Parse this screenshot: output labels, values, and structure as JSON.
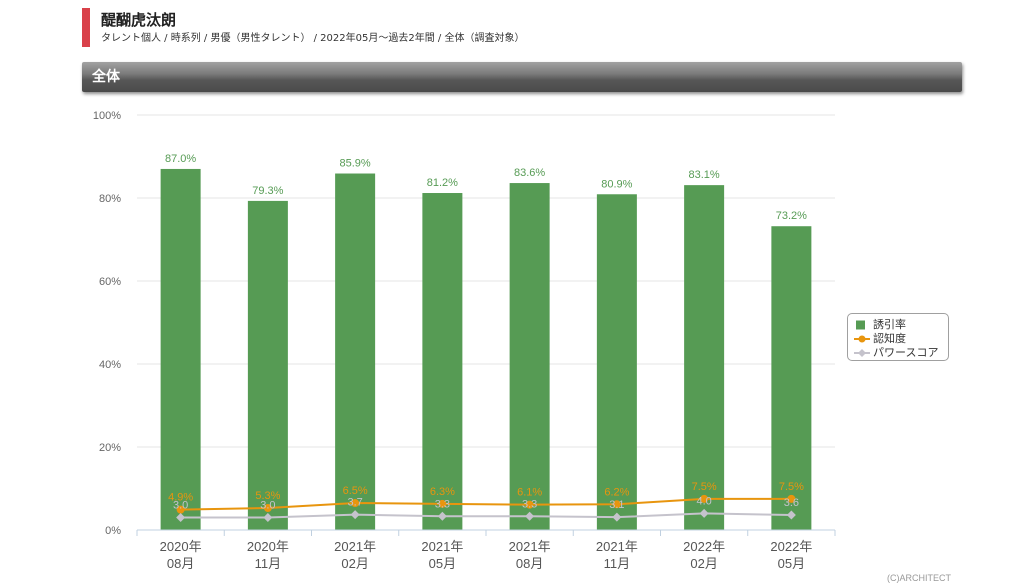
{
  "header": {
    "title": "醍醐虎汰朗",
    "subtitle": "タレント個人 / 時系列 / 男優（男性タレント） / 2022年05月～過去2年間 / 全体（調査対象）"
  },
  "section": {
    "title": "全体"
  },
  "footer": {
    "copyright": "(C)ARCHITECT"
  },
  "colors": {
    "title_accent": "#d9414a"
  },
  "chart_data": {
    "type": "bar",
    "categories": [
      [
        "2020年",
        "08月"
      ],
      [
        "2020年",
        "11月"
      ],
      [
        "2021年",
        "02月"
      ],
      [
        "2021年",
        "05月"
      ],
      [
        "2021年",
        "08月"
      ],
      [
        "2021年",
        "11月"
      ],
      [
        "2022年",
        "02月"
      ],
      [
        "2022年",
        "05月"
      ]
    ],
    "ylim": [
      0,
      100
    ],
    "y_ticks": [
      0,
      20,
      40,
      60,
      80,
      100
    ],
    "y_tick_labels": [
      "0%",
      "20%",
      "40%",
      "60%",
      "80%",
      "100%"
    ],
    "grid": true,
    "legend_position": "right",
    "series": [
      {
        "name": "誘引率",
        "type": "bar",
        "color": "#569b54",
        "values": [
          87.0,
          79.3,
          85.9,
          81.2,
          83.6,
          80.9,
          83.1,
          73.2
        ],
        "data_labels": [
          "87.0%",
          "79.3%",
          "85.9%",
          "81.2%",
          "83.6%",
          "80.9%",
          "83.1%",
          "73.2%"
        ]
      },
      {
        "name": "認知度",
        "type": "line",
        "marker": "circle",
        "color": "#e8950e",
        "values": [
          4.9,
          5.3,
          6.5,
          6.3,
          6.1,
          6.2,
          7.5,
          7.5
        ],
        "data_labels": [
          "4.9%",
          "5.3%",
          "6.5%",
          "6.3%",
          "6.1%",
          "6.2%",
          "7.5%",
          "7.5%"
        ]
      },
      {
        "name": "パワースコア",
        "type": "line",
        "marker": "diamond",
        "color": "#c5c3cc",
        "values": [
          3.0,
          3.0,
          3.7,
          3.3,
          3.3,
          3.1,
          4.0,
          3.6
        ],
        "data_labels": [
          "3.0",
          "3.0",
          "3.7",
          "3.3",
          "3.3",
          "3.1",
          "4.0",
          "3.6"
        ]
      }
    ]
  }
}
